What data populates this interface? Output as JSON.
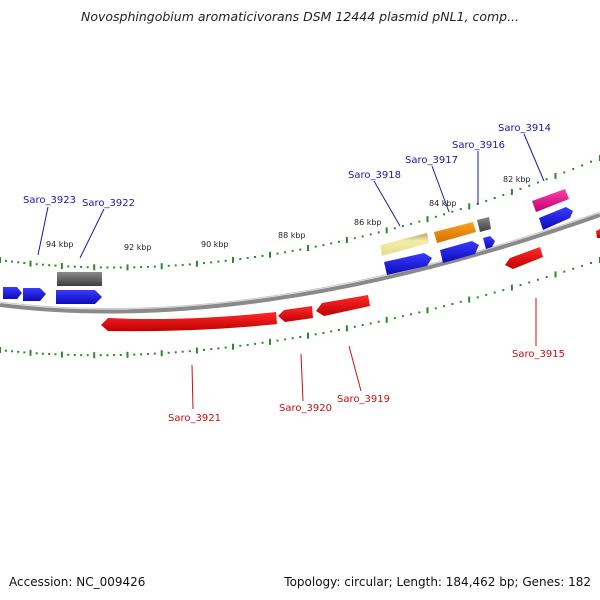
{
  "title": "Novosphingobium aromaticivorans DSM 12444 plasmid pNL1, comp...",
  "footer": {
    "accession": "Accession: NC_009426",
    "summary": "Topology: circular; Length: 184,462 bp; Genes: 182"
  },
  "colors": {
    "backbone": "#8a8a8a",
    "tick": "#2a8a2a",
    "forward_label": "#1a1aa8",
    "reverse_label": "#c81010",
    "blue_gene": "#1414e0",
    "red_gene": "#e80a0a",
    "grey_gene": "#6a6a6a",
    "yellow_gene": "#ece39a",
    "orange_gene": "#f08a10",
    "pink_gene": "#e8108a"
  },
  "scale_labels": [
    "94 kbp",
    "92 kbp",
    "90 kbp",
    "88 kbp",
    "86 kbp",
    "84 kbp",
    "82 kbp"
  ],
  "genes": [
    {
      "name": "Saro_3923",
      "strand": "forward",
      "color": "blue"
    },
    {
      "name": "Saro_3922",
      "strand": "forward",
      "color": "grey"
    },
    {
      "name": "Saro_3918",
      "strand": "forward",
      "color": "yellow"
    },
    {
      "name": "Saro_3917",
      "strand": "forward",
      "color": "orange"
    },
    {
      "name": "Saro_3916",
      "strand": "forward",
      "color": "grey"
    },
    {
      "name": "Saro_3914",
      "strand": "forward",
      "color": "pink"
    },
    {
      "name": "Saro_3921",
      "strand": "reverse",
      "color": "red"
    },
    {
      "name": "Saro_3920",
      "strand": "reverse",
      "color": "red"
    },
    {
      "name": "Saro_3919",
      "strand": "reverse",
      "color": "red"
    },
    {
      "name": "Saro_3915",
      "strand": "reverse",
      "color": "red"
    }
  ]
}
